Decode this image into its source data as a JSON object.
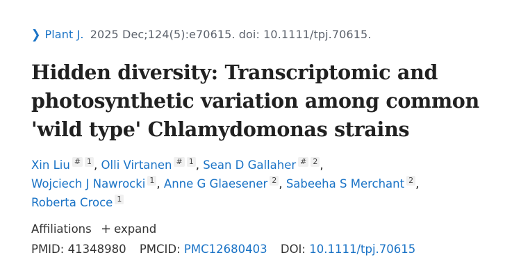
{
  "citation": {
    "chevron_icon": "chevron-right-icon",
    "journal": "Plant J.",
    "details": "2025 Dec;124(5):e70615. doi: 10.1111/tpj.70615."
  },
  "title": "Hidden diversity: Transcriptomic and photosynthetic variation among common 'wild type' Chlamydomonas strains",
  "authors": [
    {
      "name": "Xin Liu",
      "equal": "#",
      "affil": "1",
      "sep": ", "
    },
    {
      "name": "Olli Virtanen",
      "equal": "#",
      "affil": "1",
      "sep": ", "
    },
    {
      "name": "Sean D Gallaher",
      "equal": "#",
      "affil": "2",
      "sep": ","
    },
    {
      "name": "Wojciech J Nawrocki",
      "affil": "1",
      "sep": ", "
    },
    {
      "name": "Anne G Glaesener",
      "affil": "2",
      "sep": ", "
    },
    {
      "name": "Sabeeha S Merchant",
      "affil": "2",
      "sep": ","
    },
    {
      "name": "Roberta Croce",
      "affil": "1",
      "sep": ""
    }
  ],
  "affiliations": {
    "label": "Affiliations",
    "expand_icon": "plus-icon",
    "expand_symbol": "+",
    "expand_label": "expand"
  },
  "identifiers": {
    "pmid_label": "PMID:",
    "pmid": "41348980",
    "pmcid_label": "PMCID:",
    "pmcid": "PMC12680403",
    "doi_label": "DOI:",
    "doi": "10.1111/tpj.70615"
  },
  "colors": {
    "link": "#1a73c6",
    "text": "#212121",
    "muted": "#5b616b"
  }
}
